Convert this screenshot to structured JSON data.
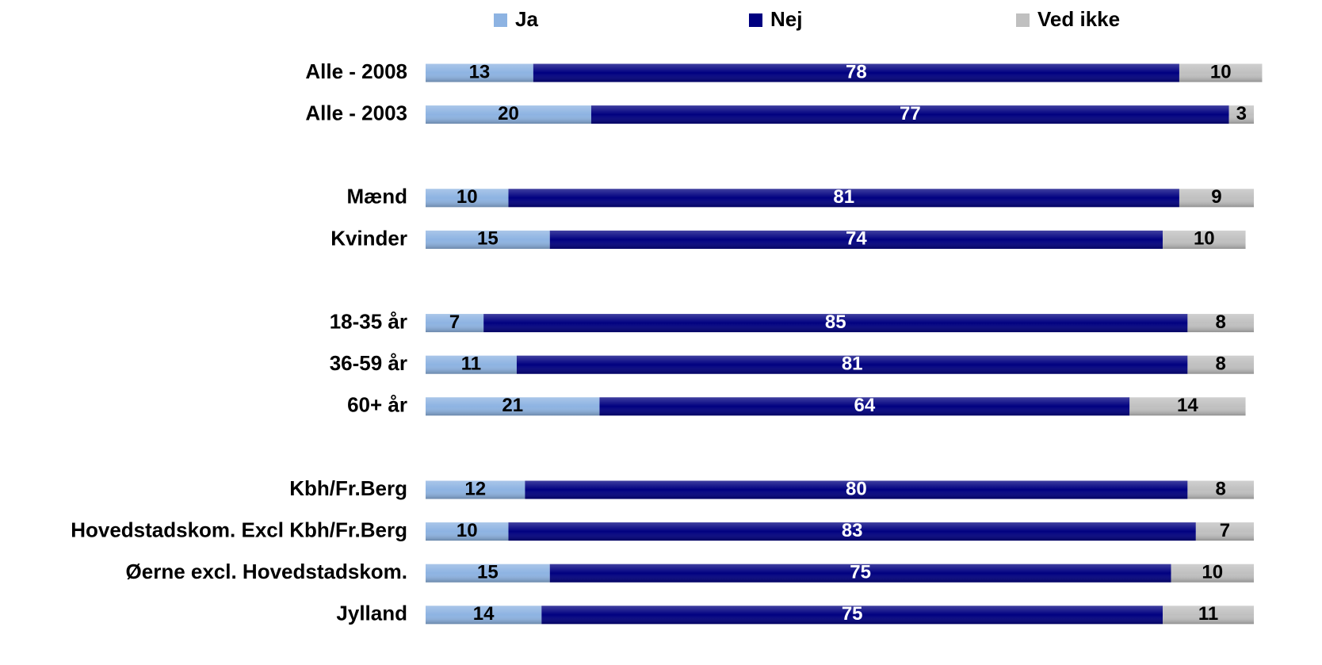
{
  "chart_data": {
    "type": "stacked-bar",
    "categories": [
      "Alle - 2008",
      "Alle - 2003",
      null,
      "Mænd",
      "Kvinder",
      null,
      "18-35 år",
      "36-59 år",
      "60+ år",
      null,
      "Kbh/Fr.Berg",
      "Hovedstadskom. Excl Kbh/Fr.Berg",
      "Øerne excl. Hovedstadskom.",
      "Jylland"
    ],
    "series": [
      {
        "name": "Ja",
        "color": "#8db3e2",
        "values": [
          13,
          20,
          null,
          10,
          15,
          null,
          7,
          11,
          21,
          null,
          12,
          10,
          15,
          14
        ]
      },
      {
        "name": "Nej",
        "color": "#000080",
        "values": [
          78,
          77,
          null,
          81,
          74,
          null,
          85,
          81,
          64,
          null,
          80,
          83,
          75,
          75
        ]
      },
      {
        "name": "Ved ikke",
        "color": "#c0c0c0",
        "values": [
          10,
          3,
          null,
          9,
          10,
          null,
          8,
          8,
          14,
          null,
          8,
          7,
          10,
          11
        ]
      }
    ],
    "legend": "top"
  }
}
